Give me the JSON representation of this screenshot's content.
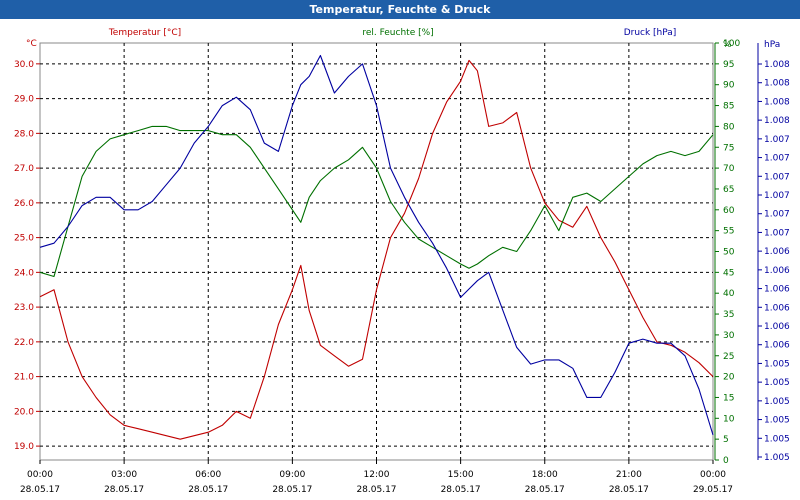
{
  "window": {
    "title": "Temperatur, Feuchte & Druck"
  },
  "chart_data": {
    "type": "line",
    "title": "Temperatur, Feuchte & Druck",
    "grid": true,
    "x": {
      "range": [
        "28.05.17 00:00",
        "29.05.17 00:00"
      ],
      "ticks": [
        {
          "time": "00:00",
          "date": "28.05.17"
        },
        {
          "time": "03:00",
          "date": "28.05.17"
        },
        {
          "time": "06:00",
          "date": "28.05.17"
        },
        {
          "time": "09:00",
          "date": "28.05.17"
        },
        {
          "time": "12:00",
          "date": "28.05.17"
        },
        {
          "time": "15:00",
          "date": "28.05.17"
        },
        {
          "time": "18:00",
          "date": "28.05.17"
        },
        {
          "time": "21:00",
          "date": "28.05.17"
        },
        {
          "time": "00:00",
          "date": "29.05.17"
        }
      ]
    },
    "axes": {
      "temperature": {
        "label": "Temperatur [°C]",
        "unit": "°C",
        "color": "#c00000",
        "range": [
          18.6,
          30.6
        ],
        "ticks": [
          "19.0",
          "20.0",
          "21.0",
          "22.0",
          "23.0",
          "24.0",
          "25.0",
          "26.0",
          "27.0",
          "28.0",
          "29.0",
          "30.0"
        ]
      },
      "humidity": {
        "label": "rel. Feuchte [%]",
        "unit": "%",
        "color": "#007000",
        "range": [
          0,
          100
        ],
        "ticks": [
          "0",
          "5",
          "10",
          "15",
          "20",
          "25",
          "30",
          "35",
          "40",
          "45",
          "50",
          "55",
          "60",
          "65",
          "70",
          "75",
          "80",
          "85",
          "90",
          "95",
          "100"
        ]
      },
      "pressure": {
        "label": "Druck [hPa]",
        "unit": "hPa",
        "color": "#0000a0",
        "range": [
          0,
          100
        ],
        "ticks": [
          "1.005",
          "1.005",
          "1.005",
          "1.005",
          "1.005",
          "1.005",
          "1.006",
          "1.006",
          "1.006",
          "1.006",
          "1.006",
          "1.006",
          "1.007",
          "1.007",
          "1.007",
          "1.007",
          "1.007",
          "1.007",
          "1.008",
          "1.008",
          "1.008",
          "1.008"
        ]
      }
    },
    "series": [
      {
        "name": "Temperatur [°C]",
        "axis": "temperature",
        "color": "#c00000",
        "hours": [
          0,
          0.5,
          1,
          1.5,
          2,
          2.5,
          3,
          3.5,
          4,
          4.5,
          5,
          5.5,
          6,
          6.5,
          7,
          7.5,
          8,
          8.5,
          9,
          9.3,
          9.6,
          10,
          10.5,
          11,
          11.5,
          12,
          12.5,
          13,
          13.5,
          14,
          14.5,
          15,
          15.3,
          15.6,
          16,
          16.5,
          17,
          17.5,
          18,
          18.5,
          19,
          19.5,
          20,
          20.5,
          21,
          21.5,
          22,
          22.5,
          23,
          23.5,
          24
        ],
        "values": [
          23.3,
          23.5,
          22.0,
          21.0,
          20.4,
          19.9,
          19.6,
          19.5,
          19.4,
          19.3,
          19.2,
          19.3,
          19.4,
          19.6,
          20.0,
          19.8,
          21.0,
          22.5,
          23.5,
          24.2,
          22.9,
          21.9,
          21.6,
          21.3,
          21.5,
          23.5,
          25.0,
          25.7,
          26.7,
          28.0,
          28.9,
          29.5,
          30.1,
          29.8,
          28.2,
          28.3,
          28.6,
          27.0,
          26.0,
          25.5,
          25.3,
          25.9,
          25.0,
          24.3,
          23.5,
          22.7,
          22.0,
          21.9,
          21.7,
          21.4,
          21.0
        ]
      },
      {
        "name": "rel. Feuchte [%]",
        "axis": "humidity",
        "color": "#007000",
        "hours": [
          0,
          0.5,
          1,
          1.5,
          2,
          2.5,
          3,
          3.5,
          4,
          4.5,
          5,
          5.5,
          6,
          6.5,
          7,
          7.5,
          8,
          8.5,
          9,
          9.3,
          9.6,
          10,
          10.5,
          11,
          11.5,
          12,
          12.5,
          13,
          13.5,
          14,
          14.5,
          15,
          15.3,
          15.6,
          16,
          16.5,
          17,
          17.5,
          18,
          18.5,
          19,
          19.5,
          20,
          20.5,
          21,
          21.5,
          22,
          22.5,
          23,
          23.5,
          24
        ],
        "values": [
          45,
          44,
          56,
          68,
          74,
          77,
          78,
          79,
          80,
          80,
          79,
          79,
          79,
          78,
          78,
          75,
          70,
          65,
          60,
          57,
          63,
          67,
          70,
          72,
          75,
          70,
          62,
          57,
          53,
          51,
          49,
          47,
          46,
          47,
          49,
          51,
          50,
          55,
          61,
          55,
          63,
          64,
          62,
          65,
          68,
          71,
          73,
          74,
          73,
          74,
          78
        ]
      },
      {
        "name": "Druck [hPa]",
        "axis": "pressure",
        "color": "#0000a0",
        "hours": [
          0,
          0.5,
          1,
          1.5,
          2,
          2.5,
          3,
          3.5,
          4,
          4.5,
          5,
          5.5,
          6,
          6.5,
          7,
          7.5,
          8,
          8.5,
          9,
          9.3,
          9.6,
          10,
          10.5,
          11,
          11.5,
          12,
          12.5,
          13,
          13.5,
          14,
          14.5,
          15,
          15.3,
          15.6,
          16,
          16.5,
          17,
          17.5,
          18,
          18.5,
          19,
          19.5,
          20,
          20.5,
          21,
          21.5,
          22,
          22.5,
          23,
          23.5,
          24
        ],
        "values": [
          51,
          52,
          56,
          61,
          63,
          63,
          60,
          60,
          62,
          66,
          70,
          76,
          80,
          85,
          87,
          84,
          76,
          74,
          85,
          90,
          92,
          97,
          88,
          92,
          95,
          85,
          70,
          63,
          57,
          52,
          46,
          39,
          41,
          43,
          45,
          36,
          27,
          23,
          24,
          24,
          22,
          15,
          15,
          21,
          28,
          29,
          28,
          28,
          25,
          17,
          6
        ]
      }
    ]
  }
}
